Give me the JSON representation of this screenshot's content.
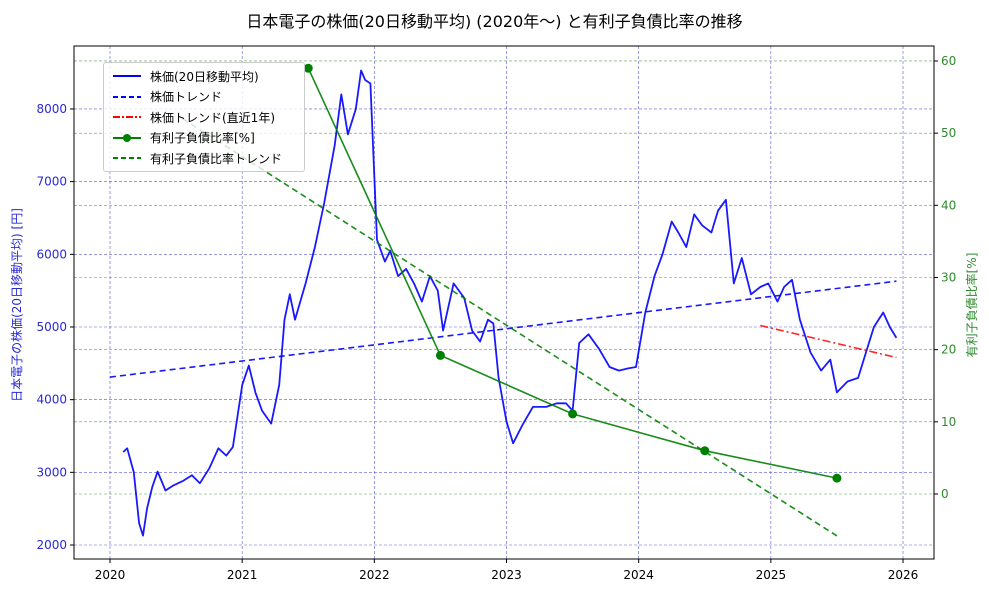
{
  "title": "日本電子の株価(20日移動平均) (2020年〜) と有利子負債比率の推移",
  "legend": [
    {
      "label": "株価(20日移動平均)",
      "color": "#0000ff",
      "style": "solid"
    },
    {
      "label": "株価トレンド",
      "color": "#0000ff",
      "style": "dashed"
    },
    {
      "label": "株価トレンド(直近1年)",
      "color": "#ff0000",
      "style": "dashdot"
    },
    {
      "label": "有利子負債比率[%]",
      "color": "#008000",
      "style": "solid-marker"
    },
    {
      "label": "有利子負債比率トレンド",
      "color": "#008000",
      "style": "dashed"
    }
  ],
  "chart_data": {
    "type": "line",
    "title": "日本電子の株価(20日移動平均) (2020年〜) と有利子負債比率の推移",
    "xlabel": "",
    "ylabel_left": "日本電子の株価(20日移動平均) [円]",
    "ylabel_right": "有利子負債比率[%]",
    "x_ticks": [
      "2020",
      "2021",
      "2022",
      "2023",
      "2024",
      "2025",
      "2026"
    ],
    "y_left_ticks": [
      2000,
      3000,
      4000,
      5000,
      6000,
      7000,
      8000
    ],
    "y_right_ticks": [
      0,
      10,
      20,
      30,
      40,
      50,
      60
    ],
    "xlim": [
      2019.72,
      2026.23
    ],
    "ylim_left": [
      1820,
      8880
    ],
    "ylim_right": [
      -9,
      62
    ],
    "grid": true,
    "legend_position": "upper left",
    "series": [
      {
        "name": "株価(20日移動平均)",
        "axis": "left",
        "color": "#0000ff",
        "style": "solid",
        "x": [
          2020.1,
          2020.13,
          2020.18,
          2020.22,
          2020.25,
          2020.28,
          2020.32,
          2020.36,
          2020.42,
          2020.48,
          2020.55,
          2020.62,
          2020.68,
          2020.75,
          2020.82,
          2020.88,
          2020.93,
          2021.0,
          2021.05,
          2021.1,
          2021.15,
          2021.22,
          2021.28,
          2021.32,
          2021.36,
          2021.4,
          2021.48,
          2021.55,
          2021.62,
          2021.7,
          2021.75,
          2021.8,
          2021.86,
          2021.9,
          2021.93,
          2021.97,
          2022.02,
          2022.08,
          2022.12,
          2022.18,
          2022.24,
          2022.3,
          2022.36,
          2022.42,
          2022.48,
          2022.52,
          2022.6,
          2022.68,
          2022.74,
          2022.8,
          2022.86,
          2022.9,
          2022.94,
          2023.0,
          2023.05,
          2023.12,
          2023.2,
          2023.3,
          2023.38,
          2023.45,
          2023.5,
          2023.55,
          2023.62,
          2023.7,
          2023.78,
          2023.85,
          2023.92,
          2023.98,
          2024.05,
          2024.12,
          2024.18,
          2024.25,
          2024.3,
          2024.36,
          2024.42,
          2024.48,
          2024.55,
          2024.6,
          2024.66,
          2024.72,
          2024.78,
          2024.85,
          2024.92,
          2024.98,
          2025.05,
          2025.1,
          2025.16,
          2025.22,
          2025.3,
          2025.38,
          2025.45,
          2025.5,
          2025.58,
          2025.66,
          2025.72,
          2025.78,
          2025.85,
          2025.9,
          2025.95
        ],
        "values": [
          3280,
          3330,
          3000,
          2300,
          2130,
          2500,
          2800,
          3010,
          2750,
          2820,
          2880,
          2960,
          2850,
          3050,
          3330,
          3230,
          3350,
          4200,
          4470,
          4100,
          3850,
          3670,
          4200,
          5100,
          5450,
          5100,
          5600,
          6100,
          6700,
          7500,
          8200,
          7650,
          8000,
          8530,
          8400,
          8350,
          6200,
          5900,
          6050,
          5700,
          5800,
          5600,
          5350,
          5700,
          5500,
          4950,
          5600,
          5400,
          4950,
          4800,
          5100,
          5050,
          4300,
          3700,
          3400,
          3650,
          3900,
          3900,
          3950,
          3950,
          3850,
          4780,
          4900,
          4700,
          4450,
          4400,
          4430,
          4450,
          5200,
          5700,
          6000,
          6450,
          6300,
          6100,
          6550,
          6400,
          6300,
          6600,
          6750,
          5600,
          5950,
          5450,
          5550,
          5600,
          5350,
          5550,
          5650,
          5100,
          4650,
          4400,
          4550,
          4100,
          4250,
          4300,
          4650,
          5000,
          5200,
          5000,
          4850
        ]
      },
      {
        "name": "株価トレンド",
        "axis": "left",
        "color": "#0000ff",
        "style": "dashed",
        "x": [
          2020.0,
          2025.95
        ],
        "values": [
          4310,
          5630
        ]
      },
      {
        "name": "株価トレンド(直近1年)",
        "axis": "left",
        "color": "#ff0000",
        "style": "dashdot",
        "x": [
          2024.92,
          2025.95
        ],
        "values": [
          5020,
          4580
        ]
      },
      {
        "name": "有利子負債比率[%]",
        "axis": "right",
        "color": "#008000",
        "style": "solid-marker",
        "x": [
          2021.5,
          2022.5,
          2023.5,
          2024.5,
          2025.5
        ],
        "values": [
          59.0,
          19.2,
          11.1,
          6.0,
          2.2
        ]
      },
      {
        "name": "有利子負債比率トレンド",
        "axis": "right",
        "color": "#008000",
        "style": "dashed",
        "x": [
          2020.55,
          2025.5
        ],
        "values": [
          52.0,
          -5.8
        ]
      }
    ]
  }
}
